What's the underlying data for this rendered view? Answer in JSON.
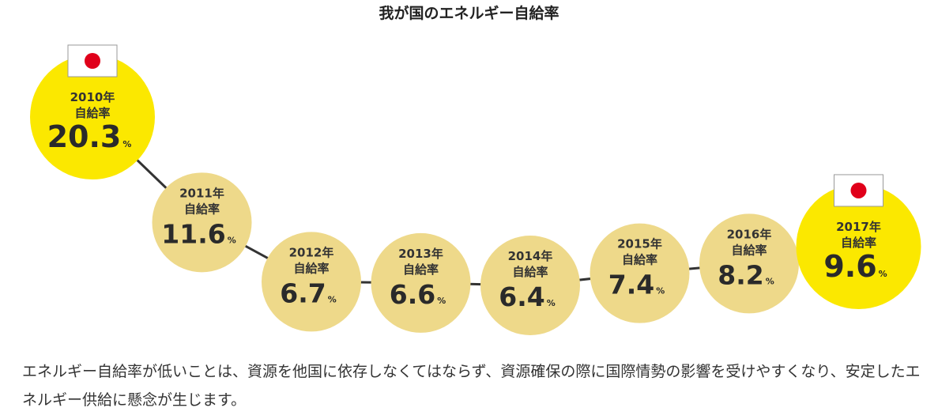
{
  "title": "我が国のエネルギー自給率",
  "caption": "エネルギー自給率が低いことは、資源を他国に依存しなくてはならず、資源確保の際に国際情勢の影響を受けやすくなり、安定したエネルギー供給に懸念が生じます。",
  "colors": {
    "highlight": "#fbe800",
    "normal": "#eed98a",
    "line": "#333333",
    "flag_red": "#e0001a"
  },
  "chart_data": {
    "type": "line",
    "title": "我が国のエネルギー自給率",
    "value_label": "自給率",
    "unit": "%",
    "x": [
      "2010年",
      "2011年",
      "2012年",
      "2013年",
      "2014年",
      "2015年",
      "2016年",
      "2017年"
    ],
    "series": [
      {
        "values": [
          20.3,
          11.6,
          6.7,
          6.6,
          6.4,
          7.4,
          8.2,
          9.6
        ]
      }
    ],
    "highlighted": [
      "2010年",
      "2017年"
    ],
    "flag_icon": "japan-flag-icon"
  }
}
